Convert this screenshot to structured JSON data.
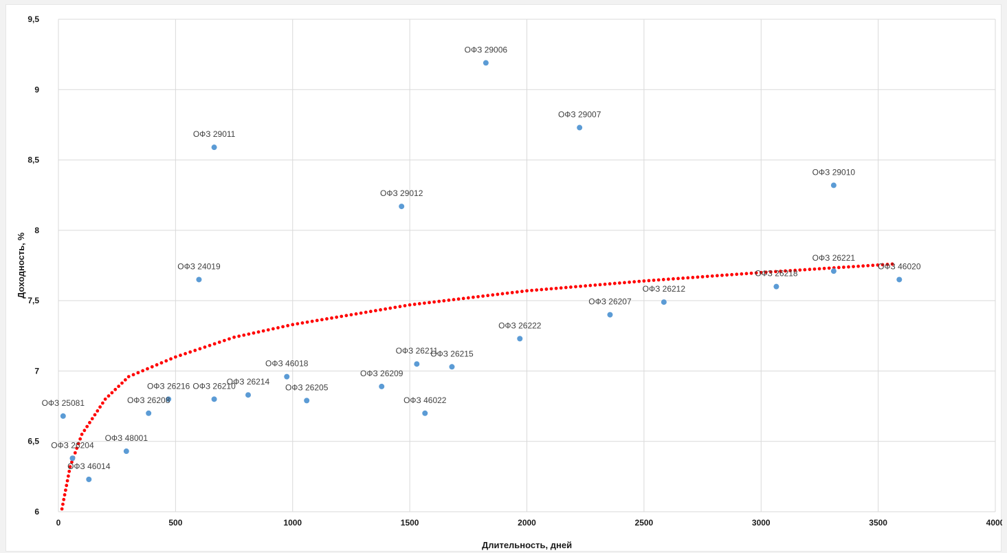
{
  "chart_data": {
    "type": "scatter",
    "title": "",
    "xlabel": "Длительность, дней",
    "ylabel": "Доходность, %",
    "xlim": [
      0,
      4000
    ],
    "ylim": [
      6,
      9.5
    ],
    "x_ticks": [
      "0",
      "500",
      "1000",
      "1500",
      "2000",
      "2500",
      "3000",
      "3500",
      "4000"
    ],
    "y_ticks": [
      "6",
      "6,5",
      "7",
      "7,5",
      "8",
      "8,5",
      "9",
      "9,5"
    ],
    "grid": true,
    "legend": "none",
    "point_color": "#5b9bd5",
    "trendline": {
      "type": "logarithmic",
      "style": "dotted",
      "color": "#ff0000",
      "points": [
        {
          "x": 15,
          "y": 6.02
        },
        {
          "x": 50,
          "y": 6.32
        },
        {
          "x": 100,
          "y": 6.55
        },
        {
          "x": 200,
          "y": 6.8
        },
        {
          "x": 300,
          "y": 6.96
        },
        {
          "x": 500,
          "y": 7.1
        },
        {
          "x": 750,
          "y": 7.24
        },
        {
          "x": 1000,
          "y": 7.33
        },
        {
          "x": 1500,
          "y": 7.47
        },
        {
          "x": 2000,
          "y": 7.57
        },
        {
          "x": 2500,
          "y": 7.64
        },
        {
          "x": 3000,
          "y": 7.7
        },
        {
          "x": 3560,
          "y": 7.76
        }
      ]
    },
    "series": [
      {
        "points": [
          {
            "label": "ОФЗ 25081",
            "x": 20,
            "y": 6.68
          },
          {
            "label": "ОФЗ 26204",
            "x": 60,
            "y": 6.38
          },
          {
            "label": "ОФЗ 46014",
            "x": 130,
            "y": 6.23
          },
          {
            "label": "ОФЗ 48001",
            "x": 290,
            "y": 6.43
          },
          {
            "label": "ОФЗ 26208",
            "x": 385,
            "y": 6.7
          },
          {
            "label": "ОФЗ 26216",
            "x": 470,
            "y": 6.8
          },
          {
            "label": "ОФЗ 24019",
            "x": 600,
            "y": 7.65
          },
          {
            "label": "ОФЗ 29011",
            "x": 665,
            "y": 8.59
          },
          {
            "label": "ОФЗ 26210",
            "x": 665,
            "y": 6.8
          },
          {
            "label": "ОФЗ 26214",
            "x": 810,
            "y": 6.83
          },
          {
            "label": "ОФЗ 46018",
            "x": 975,
            "y": 6.96
          },
          {
            "label": "ОФЗ 26205",
            "x": 1060,
            "y": 6.79
          },
          {
            "label": "ОФЗ 26209",
            "x": 1380,
            "y": 6.89
          },
          {
            "label": "ОФЗ 29012",
            "x": 1465,
            "y": 8.17
          },
          {
            "label": "ОФЗ 26211",
            "x": 1530,
            "y": 7.05
          },
          {
            "label": "ОФЗ 46022",
            "x": 1565,
            "y": 6.7
          },
          {
            "label": "ОФЗ 26215",
            "x": 1680,
            "y": 7.03
          },
          {
            "label": "ОФЗ 29006",
            "x": 1825,
            "y": 9.19
          },
          {
            "label": "ОФЗ 26222",
            "x": 1970,
            "y": 7.23
          },
          {
            "label": "ОФЗ 29007",
            "x": 2225,
            "y": 8.73
          },
          {
            "label": "ОФЗ 26207",
            "x": 2355,
            "y": 7.4
          },
          {
            "label": "ОФЗ 26212",
            "x": 2585,
            "y": 7.49
          },
          {
            "label": "ОФЗ 26218",
            "x": 3065,
            "y": 7.6
          },
          {
            "label": "ОФЗ 26221",
            "x": 3310,
            "y": 7.71
          },
          {
            "label": "ОФЗ 29010",
            "x": 3310,
            "y": 8.32
          },
          {
            "label": "ОФЗ 46020",
            "x": 3590,
            "y": 7.65
          }
        ]
      }
    ]
  }
}
